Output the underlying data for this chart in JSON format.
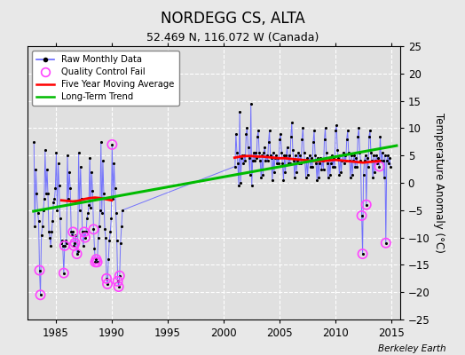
{
  "title": "NORDEGG CS, ALTA",
  "subtitle": "52.469 N, 116.072 W (Canada)",
  "ylabel": "Temperature Anomaly (°C)",
  "credit": "Berkeley Earth",
  "xlim": [
    1982.5,
    2015.8
  ],
  "ylim": [
    -25,
    25
  ],
  "yticks": [
    -25,
    -20,
    -15,
    -10,
    -5,
    0,
    5,
    10,
    15,
    20,
    25
  ],
  "xticks": [
    1985,
    1990,
    1995,
    2000,
    2005,
    2010,
    2015
  ],
  "plot_bg": "#e0e0e0",
  "fig_bg": "#e8e8e8",
  "grid_color": "#ffffff",
  "raw_color": "#6666ff",
  "dot_color": "#000000",
  "qc_color": "#ff44ff",
  "ma_color": "#ff0000",
  "trend_color": "#00bb00",
  "raw_data": [
    [
      1983.04,
      7.5
    ],
    [
      1983.12,
      -8.0
    ],
    [
      1983.21,
      2.5
    ],
    [
      1983.29,
      -2.0
    ],
    [
      1983.38,
      -5.5
    ],
    [
      1983.46,
      -7.0
    ],
    [
      1983.54,
      -16.0
    ],
    [
      1983.62,
      -20.5
    ],
    [
      1983.71,
      -9.5
    ],
    [
      1983.79,
      -8.0
    ],
    [
      1983.88,
      -5.0
    ],
    [
      1983.96,
      -3.0
    ],
    [
      1984.04,
      6.0
    ],
    [
      1984.12,
      -2.0
    ],
    [
      1984.21,
      2.5
    ],
    [
      1984.29,
      -2.0
    ],
    [
      1984.38,
      -9.0
    ],
    [
      1984.46,
      -10.0
    ],
    [
      1984.54,
      -11.5
    ],
    [
      1984.62,
      -9.0
    ],
    [
      1984.71,
      -7.0
    ],
    [
      1984.79,
      -3.5
    ],
    [
      1984.88,
      -3.0
    ],
    [
      1984.96,
      -1.0
    ],
    [
      1985.04,
      5.5
    ],
    [
      1985.12,
      -5.0
    ],
    [
      1985.21,
      3.5
    ],
    [
      1985.29,
      -0.5
    ],
    [
      1985.38,
      -6.5
    ],
    [
      1985.46,
      -11.0
    ],
    [
      1985.54,
      -10.5
    ],
    [
      1985.62,
      -11.5
    ],
    [
      1985.71,
      -16.5
    ],
    [
      1985.79,
      -11.5
    ],
    [
      1985.88,
      -10.5
    ],
    [
      1985.96,
      -11.0
    ],
    [
      1986.04,
      5.0
    ],
    [
      1986.12,
      -3.0
    ],
    [
      1986.21,
      2.0
    ],
    [
      1986.29,
      -1.0
    ],
    [
      1986.38,
      -9.0
    ],
    [
      1986.46,
      -9.5
    ],
    [
      1986.54,
      -9.0
    ],
    [
      1986.62,
      -11.5
    ],
    [
      1986.71,
      -11.0
    ],
    [
      1986.79,
      -9.5
    ],
    [
      1986.88,
      -13.0
    ],
    [
      1986.96,
      -12.5
    ],
    [
      1987.04,
      5.5
    ],
    [
      1987.12,
      -5.0
    ],
    [
      1987.21,
      3.0
    ],
    [
      1987.29,
      -3.0
    ],
    [
      1987.38,
      -9.0
    ],
    [
      1987.46,
      -11.5
    ],
    [
      1987.54,
      -9.0
    ],
    [
      1987.62,
      -10.0
    ],
    [
      1987.71,
      -9.0
    ],
    [
      1987.79,
      -6.5
    ],
    [
      1987.88,
      -5.5
    ],
    [
      1987.96,
      -4.0
    ],
    [
      1988.04,
      4.5
    ],
    [
      1988.12,
      -4.5
    ],
    [
      1988.21,
      2.0
    ],
    [
      1988.29,
      -1.5
    ],
    [
      1988.38,
      -8.5
    ],
    [
      1988.46,
      -12.0
    ],
    [
      1988.54,
      -14.5
    ],
    [
      1988.62,
      -14.0
    ],
    [
      1988.71,
      -14.5
    ],
    [
      1988.79,
      -10.0
    ],
    [
      1988.88,
      -8.0
    ],
    [
      1988.96,
      -5.0
    ],
    [
      1989.04,
      7.5
    ],
    [
      1989.12,
      -5.5
    ],
    [
      1989.21,
      4.0
    ],
    [
      1989.29,
      -2.0
    ],
    [
      1989.38,
      -8.5
    ],
    [
      1989.46,
      -10.0
    ],
    [
      1989.54,
      -17.5
    ],
    [
      1989.62,
      -18.5
    ],
    [
      1989.71,
      -14.0
    ],
    [
      1989.79,
      -10.5
    ],
    [
      1989.88,
      -9.0
    ],
    [
      1989.96,
      -6.5
    ],
    [
      1990.04,
      7.0
    ],
    [
      1990.12,
      -3.0
    ],
    [
      1990.21,
      3.5
    ],
    [
      1990.29,
      -1.0
    ],
    [
      1990.38,
      -5.5
    ],
    [
      1990.46,
      -10.5
    ],
    [
      1990.54,
      -18.0
    ],
    [
      1990.62,
      -19.0
    ],
    [
      1990.71,
      -17.0
    ],
    [
      1990.79,
      -11.0
    ],
    [
      1990.88,
      -8.0
    ],
    [
      1990.96,
      -5.0
    ],
    [
      2001.04,
      3.0
    ],
    [
      2001.12,
      9.0
    ],
    [
      2001.21,
      5.5
    ],
    [
      2001.29,
      3.5
    ],
    [
      2001.38,
      -0.5
    ],
    [
      2001.46,
      13.0
    ],
    [
      2001.54,
      0.0
    ],
    [
      2001.62,
      4.5
    ],
    [
      2001.71,
      5.0
    ],
    [
      2001.79,
      3.5
    ],
    [
      2001.88,
      5.0
    ],
    [
      2001.96,
      4.0
    ],
    [
      2002.04,
      9.0
    ],
    [
      2002.12,
      10.0
    ],
    [
      2002.21,
      6.5
    ],
    [
      2002.29,
      4.5
    ],
    [
      2002.38,
      1.5
    ],
    [
      2002.46,
      14.5
    ],
    [
      2002.54,
      -0.5
    ],
    [
      2002.62,
      4.0
    ],
    [
      2002.71,
      5.5
    ],
    [
      2002.79,
      4.0
    ],
    [
      2002.88,
      5.5
    ],
    [
      2002.96,
      4.5
    ],
    [
      2003.04,
      8.5
    ],
    [
      2003.12,
      9.5
    ],
    [
      2003.21,
      5.5
    ],
    [
      2003.29,
      4.0
    ],
    [
      2003.38,
      1.0
    ],
    [
      2003.46,
      5.0
    ],
    [
      2003.54,
      1.5
    ],
    [
      2003.62,
      5.5
    ],
    [
      2003.71,
      6.5
    ],
    [
      2003.79,
      4.0
    ],
    [
      2003.88,
      5.0
    ],
    [
      2003.96,
      4.0
    ],
    [
      2004.04,
      7.5
    ],
    [
      2004.12,
      9.5
    ],
    [
      2004.21,
      5.0
    ],
    [
      2004.29,
      4.5
    ],
    [
      2004.38,
      0.5
    ],
    [
      2004.46,
      5.5
    ],
    [
      2004.54,
      2.0
    ],
    [
      2004.62,
      4.5
    ],
    [
      2004.71,
      5.0
    ],
    [
      2004.79,
      3.5
    ],
    [
      2004.88,
      4.5
    ],
    [
      2004.96,
      3.5
    ],
    [
      2005.04,
      8.0
    ],
    [
      2005.12,
      9.0
    ],
    [
      2005.21,
      5.5
    ],
    [
      2005.29,
      3.5
    ],
    [
      2005.38,
      0.5
    ],
    [
      2005.46,
      5.0
    ],
    [
      2005.54,
      2.0
    ],
    [
      2005.62,
      5.0
    ],
    [
      2005.71,
      6.5
    ],
    [
      2005.79,
      3.5
    ],
    [
      2005.88,
      5.0
    ],
    [
      2005.96,
      3.5
    ],
    [
      2006.04,
      8.5
    ],
    [
      2006.12,
      11.0
    ],
    [
      2006.21,
      6.0
    ],
    [
      2006.29,
      4.0
    ],
    [
      2006.38,
      1.0
    ],
    [
      2006.46,
      5.0
    ],
    [
      2006.54,
      2.0
    ],
    [
      2006.62,
      4.0
    ],
    [
      2006.71,
      5.5
    ],
    [
      2006.79,
      3.5
    ],
    [
      2006.88,
      5.0
    ],
    [
      2006.96,
      3.5
    ],
    [
      2007.04,
      8.0
    ],
    [
      2007.12,
      10.0
    ],
    [
      2007.21,
      5.5
    ],
    [
      2007.29,
      4.0
    ],
    [
      2007.38,
      1.0
    ],
    [
      2007.46,
      4.5
    ],
    [
      2007.54,
      1.5
    ],
    [
      2007.62,
      4.0
    ],
    [
      2007.71,
      5.0
    ],
    [
      2007.79,
      3.0
    ],
    [
      2007.88,
      4.5
    ],
    [
      2007.96,
      3.0
    ],
    [
      2008.04,
      7.5
    ],
    [
      2008.12,
      9.5
    ],
    [
      2008.21,
      5.0
    ],
    [
      2008.29,
      3.5
    ],
    [
      2008.38,
      0.5
    ],
    [
      2008.46,
      4.5
    ],
    [
      2008.54,
      1.0
    ],
    [
      2008.62,
      3.5
    ],
    [
      2008.71,
      4.5
    ],
    [
      2008.79,
      2.5
    ],
    [
      2008.88,
      4.0
    ],
    [
      2008.96,
      2.5
    ],
    [
      2009.04,
      8.0
    ],
    [
      2009.12,
      10.0
    ],
    [
      2009.21,
      5.5
    ],
    [
      2009.29,
      3.5
    ],
    [
      2009.38,
      1.0
    ],
    [
      2009.46,
      4.5
    ],
    [
      2009.54,
      1.5
    ],
    [
      2009.62,
      3.5
    ],
    [
      2009.71,
      5.0
    ],
    [
      2009.79,
      3.0
    ],
    [
      2009.88,
      4.5
    ],
    [
      2009.96,
      3.0
    ],
    [
      2010.04,
      9.5
    ],
    [
      2010.12,
      10.5
    ],
    [
      2010.21,
      6.0
    ],
    [
      2010.29,
      4.5
    ],
    [
      2010.38,
      1.5
    ],
    [
      2010.46,
      5.0
    ],
    [
      2010.54,
      2.0
    ],
    [
      2010.62,
      4.0
    ],
    [
      2010.71,
      5.5
    ],
    [
      2010.79,
      3.5
    ],
    [
      2010.88,
      5.0
    ],
    [
      2010.96,
      4.0
    ],
    [
      2011.04,
      8.0
    ],
    [
      2011.12,
      9.5
    ],
    [
      2011.21,
      5.5
    ],
    [
      2011.29,
      4.0
    ],
    [
      2011.38,
      1.0
    ],
    [
      2011.46,
      5.0
    ],
    [
      2011.54,
      1.5
    ],
    [
      2011.62,
      4.0
    ],
    [
      2011.71,
      5.0
    ],
    [
      2011.79,
      3.0
    ],
    [
      2011.88,
      4.5
    ],
    [
      2011.96,
      3.0
    ],
    [
      2012.04,
      8.5
    ],
    [
      2012.12,
      10.0
    ],
    [
      2012.21,
      5.5
    ],
    [
      2012.29,
      4.0
    ],
    [
      2012.38,
      -6.0
    ],
    [
      2012.46,
      -13.0
    ],
    [
      2012.54,
      1.5
    ],
    [
      2012.62,
      4.0
    ],
    [
      2012.71,
      5.0
    ],
    [
      2012.79,
      -4.0
    ],
    [
      2012.88,
      4.5
    ],
    [
      2012.96,
      3.0
    ],
    [
      2013.04,
      8.5
    ],
    [
      2013.12,
      9.5
    ],
    [
      2013.21,
      5.5
    ],
    [
      2013.29,
      4.0
    ],
    [
      2013.38,
      1.0
    ],
    [
      2013.46,
      5.0
    ],
    [
      2013.54,
      2.0
    ],
    [
      2013.62,
      4.0
    ],
    [
      2013.71,
      5.0
    ],
    [
      2013.79,
      3.5
    ],
    [
      2013.88,
      4.5
    ],
    [
      2013.96,
      3.0
    ],
    [
      2014.04,
      8.5
    ],
    [
      2014.12,
      4.0
    ],
    [
      2014.21,
      5.5
    ],
    [
      2014.29,
      4.0
    ],
    [
      2014.38,
      1.0
    ],
    [
      2014.46,
      5.0
    ],
    [
      2014.54,
      -11.0
    ],
    [
      2014.62,
      4.0
    ],
    [
      2014.71,
      5.0
    ],
    [
      2014.79,
      3.5
    ],
    [
      2014.88,
      4.5
    ],
    [
      2014.96,
      3.0
    ]
  ],
  "qc_fail_points": [
    [
      1983.54,
      -16.0
    ],
    [
      1983.62,
      -20.5
    ],
    [
      1985.71,
      -16.5
    ],
    [
      1985.79,
      -11.5
    ],
    [
      1986.54,
      -9.0
    ],
    [
      1986.62,
      -11.5
    ],
    [
      1986.71,
      -11.0
    ],
    [
      1986.88,
      -13.0
    ],
    [
      1987.54,
      -9.0
    ],
    [
      1987.62,
      -10.0
    ],
    [
      1988.38,
      -8.5
    ],
    [
      1988.54,
      -14.5
    ],
    [
      1988.62,
      -14.0
    ],
    [
      1988.71,
      -14.5
    ],
    [
      1989.54,
      -17.5
    ],
    [
      1989.62,
      -18.5
    ],
    [
      1990.04,
      7.0
    ],
    [
      1990.54,
      -18.0
    ],
    [
      1990.62,
      -19.0
    ],
    [
      1990.71,
      -17.0
    ],
    [
      2012.38,
      -6.0
    ],
    [
      2012.46,
      -13.0
    ],
    [
      2012.79,
      -4.0
    ],
    [
      2013.96,
      3.0
    ],
    [
      2014.54,
      -11.0
    ]
  ],
  "moving_avg_early": [
    [
      1985.5,
      -3.2
    ],
    [
      1986.0,
      -3.3
    ],
    [
      1986.5,
      -3.4
    ],
    [
      1987.0,
      -3.3
    ],
    [
      1987.5,
      -3.0
    ],
    [
      1988.0,
      -2.8
    ],
    [
      1988.5,
      -2.7
    ],
    [
      1989.0,
      -2.8
    ],
    [
      1989.5,
      -3.0
    ],
    [
      1990.0,
      -3.2
    ]
  ],
  "moving_avg_late": [
    [
      2001.0,
      4.6
    ],
    [
      2001.5,
      4.8
    ],
    [
      2002.0,
      4.9
    ],
    [
      2002.5,
      4.9
    ],
    [
      2003.0,
      4.8
    ],
    [
      2003.5,
      4.8
    ],
    [
      2004.0,
      4.7
    ],
    [
      2004.5,
      4.6
    ],
    [
      2005.0,
      4.5
    ],
    [
      2005.5,
      4.5
    ],
    [
      2006.0,
      4.4
    ],
    [
      2006.5,
      4.3
    ],
    [
      2007.0,
      4.2
    ],
    [
      2007.5,
      4.1
    ],
    [
      2008.0,
      4.0
    ],
    [
      2008.5,
      4.0
    ],
    [
      2009.0,
      4.0
    ],
    [
      2009.5,
      4.1
    ],
    [
      2010.0,
      4.2
    ],
    [
      2010.5,
      4.1
    ],
    [
      2011.0,
      4.0
    ],
    [
      2011.5,
      3.9
    ],
    [
      2012.0,
      3.8
    ],
    [
      2012.5,
      3.7
    ],
    [
      2013.0,
      3.8
    ],
    [
      2013.5,
      3.9
    ],
    [
      2014.0,
      4.0
    ]
  ],
  "trend_line": [
    [
      1983.0,
      -5.2
    ],
    [
      2015.5,
      6.8
    ]
  ]
}
